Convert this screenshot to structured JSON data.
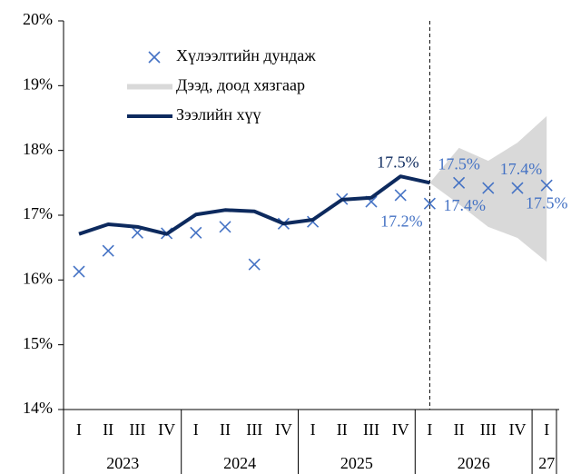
{
  "chart_data": {
    "type": "combo",
    "categories": [
      "I",
      "II",
      "III",
      "IV",
      "I",
      "II",
      "III",
      "IV",
      "I",
      "II",
      "III",
      "IV",
      "I",
      "II",
      "III",
      "IV",
      "I"
    ],
    "groups": [
      "2023",
      "2024",
      "2025",
      "2026",
      "27"
    ],
    "ylim": [
      14,
      20
    ],
    "yticks": [
      {
        "value": 14,
        "label": "14%"
      },
      {
        "value": 15,
        "label": "15%"
      },
      {
        "value": 16,
        "label": "16%"
      },
      {
        "value": 17,
        "label": "17%"
      },
      {
        "value": 18,
        "label": "18%"
      },
      {
        "value": 19,
        "label": "19%"
      },
      {
        "value": 20,
        "label": "20%"
      }
    ],
    "series": [
      {
        "name": "Хүлээлтийн дундаж",
        "type": "scatter",
        "color": "#4472c4",
        "values": [
          16.13,
          16.45,
          16.73,
          16.72,
          16.73,
          16.82,
          16.24,
          16.87,
          16.9,
          17.25,
          17.21,
          17.31,
          17.18,
          17.5,
          17.42,
          17.42,
          17.46
        ],
        "value_labels": [
          null,
          null,
          null,
          null,
          null,
          null,
          null,
          null,
          null,
          null,
          null,
          null,
          "17.2%",
          "17.5%",
          "17.4%",
          "17.4%",
          "17.5%"
        ]
      },
      {
        "name": "Дээд, доод хязгаар",
        "type": "band",
        "color": "#d9d9d9",
        "values": [
          null,
          null,
          null,
          null,
          null,
          null,
          null,
          null,
          null,
          null,
          null,
          null,
          17.5,
          18.04,
          17.84,
          18.12,
          18.53
        ],
        "lower": [
          null,
          null,
          null,
          null,
          null,
          null,
          null,
          null,
          null,
          null,
          null,
          null,
          17.5,
          17.17,
          16.82,
          16.65,
          16.28
        ]
      },
      {
        "name": "Зээлийн хүү",
        "type": "line",
        "color": "#0d2a5e",
        "values": [
          16.71,
          16.86,
          16.82,
          16.71,
          17.01,
          17.08,
          17.06,
          16.87,
          16.93,
          17.24,
          17.27,
          17.6,
          17.5,
          null,
          null,
          null,
          null
        ],
        "value_labels": [
          null,
          null,
          null,
          null,
          null,
          null,
          null,
          null,
          null,
          null,
          null,
          null,
          "17.5%",
          null,
          null,
          null,
          null
        ]
      }
    ]
  }
}
